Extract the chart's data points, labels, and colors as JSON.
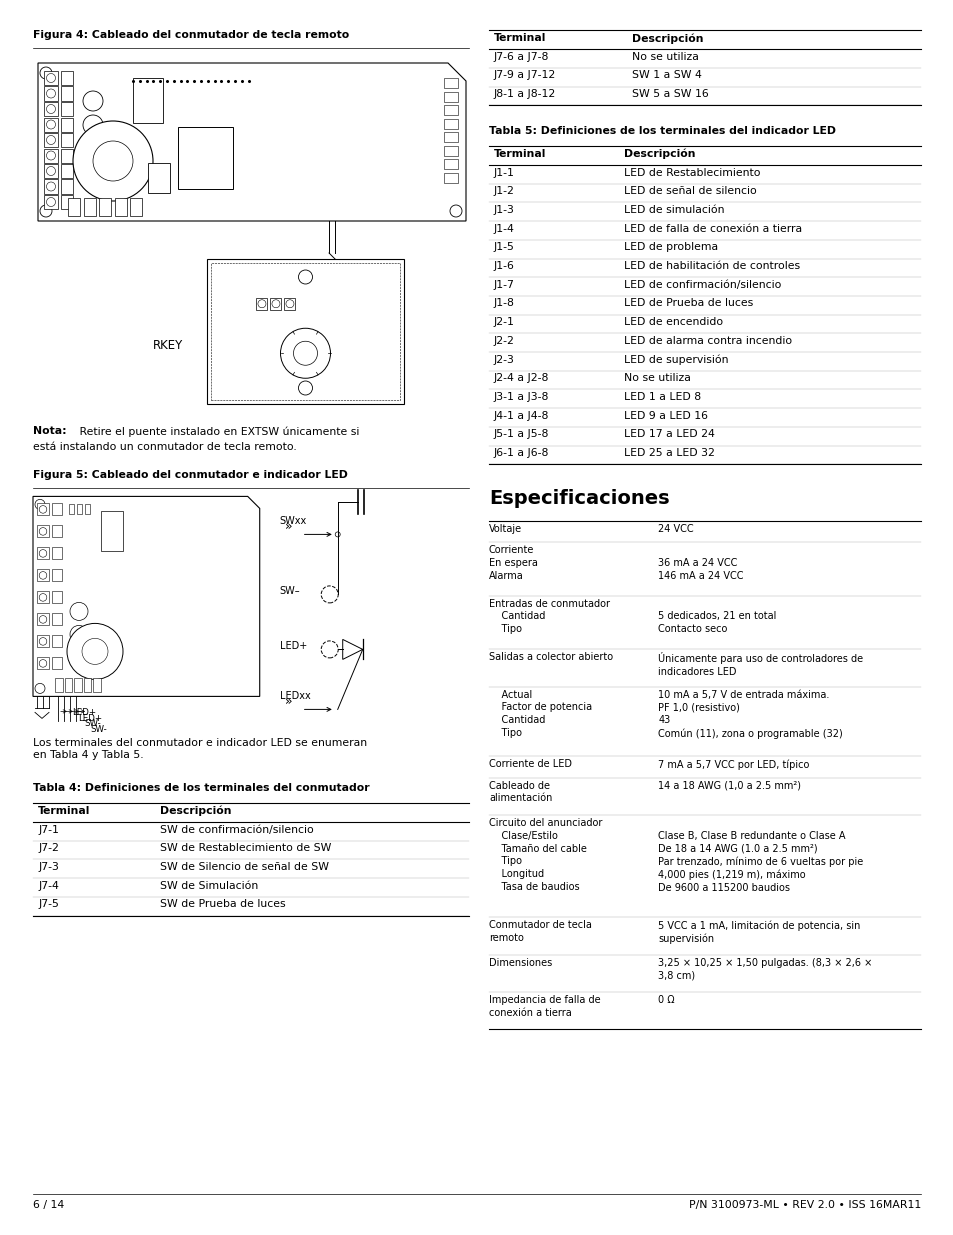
{
  "page_bg": "#ffffff",
  "page_width": 9.54,
  "page_height": 12.35,
  "fig4_caption": "Figura 4: Cableado del conmutador de tecla remoto",
  "fig5_caption": "Figura 5: Cableado del conmutador e indicador LED",
  "note_bold": "Nota:",
  "note_text": " Retire el puente instalado en EXTSW únicamente si\nestá instalando un conmutador de tecla remoto.",
  "fig5_text": "Los terminales del conmutador e indicador LED se enumeran\nen Tabla 4 y Tabla 5.",
  "table4_title": "Tabla 4: Definiciones de los terminales del conmutador",
  "table4_headers": [
    "Terminal",
    "Descripción"
  ],
  "table4_rows": [
    [
      "J7-1",
      "SW de confirmación/silencio"
    ],
    [
      "J7-2",
      "SW de Restablecimiento de SW"
    ],
    [
      "J7-3",
      "SW de Silencio de señal de SW"
    ],
    [
      "J7-4",
      "SW de Simulación"
    ],
    [
      "J7-5",
      "SW de Prueba de luces"
    ]
  ],
  "table_right1_headers": [
    "Terminal",
    "Descripción"
  ],
  "table_right1_rows": [
    [
      "J7-6 a J7-8",
      "No se utiliza"
    ],
    [
      "J7-9 a J7-12",
      "SW 1 a SW 4"
    ],
    [
      "J8-1 a J8-12",
      "SW 5 a SW 16"
    ]
  ],
  "table5_title": "Tabla 5: Definiciones de los terminales del indicador LED",
  "table5_headers": [
    "Terminal",
    "Descripción"
  ],
  "table5_rows": [
    [
      "J1-1",
      "LED de Restablecimiento"
    ],
    [
      "J1-2",
      "LED de señal de silencio"
    ],
    [
      "J1-3",
      "LED de simulación"
    ],
    [
      "J1-4",
      "LED de falla de conexión a tierra"
    ],
    [
      "J1-5",
      "LED de problema"
    ],
    [
      "J1-6",
      "LED de habilitación de controles"
    ],
    [
      "J1-7",
      "LED de confirmación/silencio"
    ],
    [
      "J1-8",
      "LED de Prueba de luces"
    ],
    [
      "J2-1",
      "LED de encendido"
    ],
    [
      "J2-2",
      "LED de alarma contra incendio"
    ],
    [
      "J2-3",
      "LED de supervisión"
    ],
    [
      "J2-4 a J2-8",
      "No se utiliza"
    ],
    [
      "J3-1 a J3-8",
      "LED 1 a LED 8"
    ],
    [
      "J4-1 a J4-8",
      "LED 9 a LED 16"
    ],
    [
      "J5-1 a J5-8",
      "LED 17 a LED 24"
    ],
    [
      "J6-1 a J6-8",
      "LED 25 a LED 32"
    ]
  ],
  "spec_title": "Especificaciones",
  "spec_data": [
    [
      "Voltaje",
      "24 VCC"
    ],
    [
      "Corriente\nEn espera\nAlarma",
      "\n36 mA a 24 VCC\n146 mA a 24 VCC"
    ],
    [
      "Entradas de conmutador\n    Cantidad\n    Tipo",
      "\n5 dedicados, 21 en total\nContacto seco"
    ],
    [
      "Salidas a colector abierto",
      "Únicamente para uso de controladores de\nindicadores LED"
    ],
    [
      "    Actual\n    Factor de potencia\n    Cantidad\n    Tipo",
      "10 mA a 5,7 V de entrada máxima.\nPF 1,0 (resistivo)\n43\nComún (11), zona o programable (32)"
    ],
    [
      "Corriente de LED",
      "7 mA a 5,7 VCC por LED, típico"
    ],
    [
      "Cableado de\nalimentación",
      "14 a 18 AWG (1,0 a 2.5 mm²)"
    ],
    [
      "Circuito del anunciador\n    Clase/Estilo\n    Tamaño del cable\n    Tipo\n    Longitud\n    Tasa de baudios",
      "\nClase B, Clase B redundante o Clase A\nDe 18 a 14 AWG (1.0 a 2.5 mm²)\nPar trenzado, mínimo de 6 vueltas por pie\n4,000 pies (1,219 m), máximo\nDe 9600 a 115200 baudios"
    ],
    [
      "Conmutador de tecla\nremoto",
      "5 VCC a 1 mA, limitación de potencia, sin\nsupervisión"
    ],
    [
      "Dimensiones",
      "3,25 × 10,25 × 1,50 pulgadas. (8,3 × 2,6 ×\n3,8 cm)"
    ],
    [
      "Impedancia de falla de\nconexión a tierra",
      "0 Ω"
    ]
  ],
  "footer_left": "6 / 14",
  "footer_right": "P/N 3100973-ML • REV 2.0 • ISS 16MAR11"
}
